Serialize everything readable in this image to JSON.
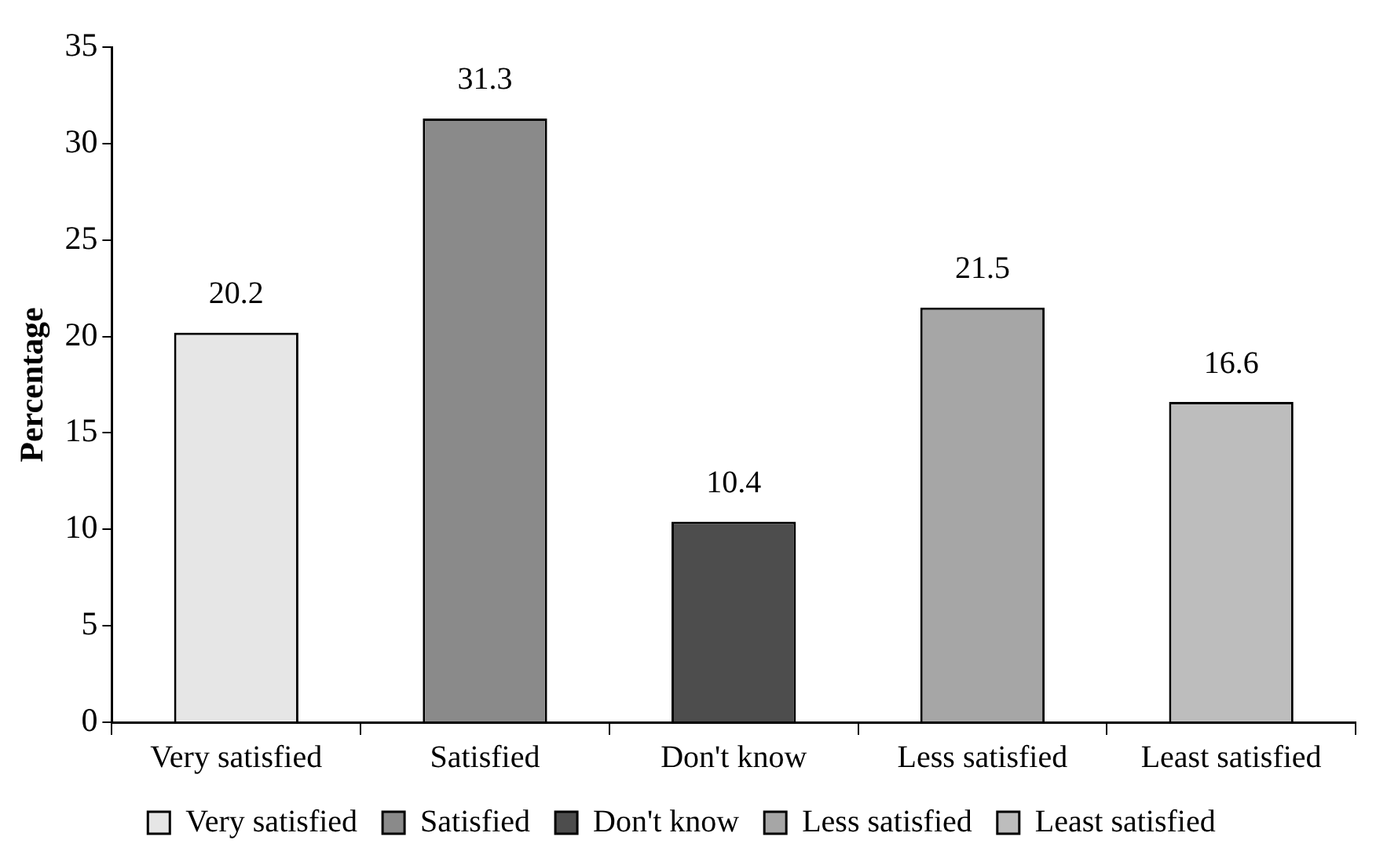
{
  "chart_data": {
    "type": "bar",
    "ylabel": "Percentage",
    "categories": [
      "Very satisfied",
      "Satisfied",
      "Don't know",
      "Less satisfied",
      "Least satisfied"
    ],
    "series": [
      {
        "name": "Very satisfied",
        "color": "#e6e6e6",
        "values": [
          20.2,
          null,
          null,
          null,
          null
        ]
      },
      {
        "name": "Satisfied",
        "color": "#8a8a8a",
        "values": [
          null,
          31.3,
          null,
          null,
          null
        ]
      },
      {
        "name": "Don't know",
        "color": "#4d4d4d",
        "values": [
          null,
          null,
          10.4,
          null,
          null
        ]
      },
      {
        "name": "Less satisfied",
        "color": "#a6a6a6",
        "values": [
          null,
          null,
          null,
          21.5,
          null
        ]
      },
      {
        "name": "Least satisfied",
        "color": "#bdbdbd",
        "values": [
          null,
          null,
          null,
          null,
          16.6
        ]
      }
    ],
    "ylim": [
      0,
      35
    ],
    "yticks": [
      0,
      5,
      10,
      15,
      20,
      25,
      30,
      35
    ],
    "grid": false,
    "legend": "bottom",
    "data_labels": true
  }
}
